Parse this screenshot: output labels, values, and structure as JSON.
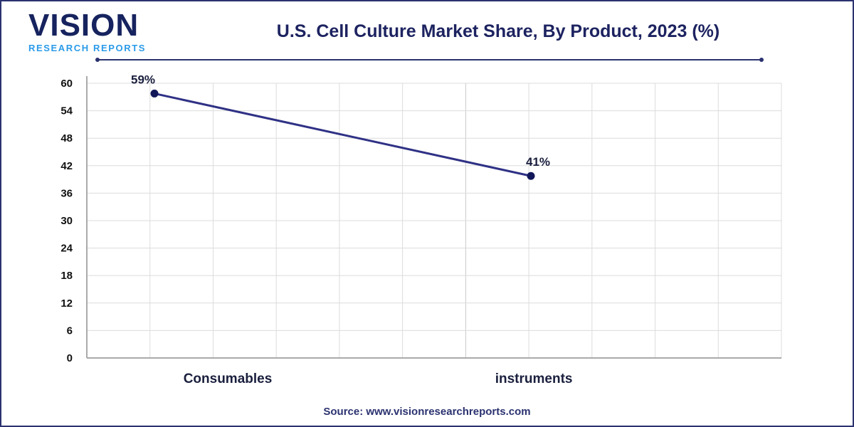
{
  "logo": {
    "main": "VISION",
    "sub": "RESEARCH REPORTS"
  },
  "source": "Source: www.visionresearchreports.com",
  "colors": {
    "line": "#2f3185",
    "marker": "#12175a",
    "frame": "#2b3270",
    "grid": "#dcdcdc"
  },
  "chart_data": {
    "type": "line",
    "title": "U.S. Cell Culture Market Share, By Product, 2023 (%)",
    "categories": [
      "Consumables",
      "instruments"
    ],
    "values": [
      59,
      41
    ],
    "data_labels": [
      "59%",
      "41%"
    ],
    "xlabel": "",
    "ylabel": "",
    "ylim": [
      0,
      60
    ],
    "yticks": [
      "0",
      "6",
      "12",
      "18",
      "24",
      "30",
      "36",
      "42",
      "48",
      "54",
      "60"
    ],
    "grid": true
  }
}
